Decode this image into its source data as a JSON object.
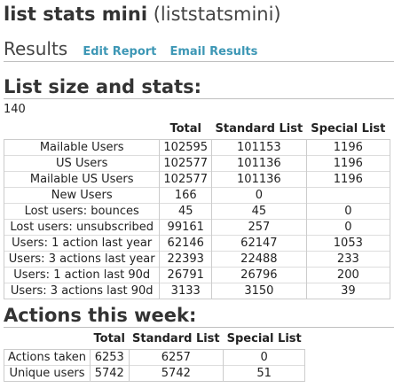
{
  "page": {
    "list_name": "list stats mini",
    "list_slug": "(liststatsmini)"
  },
  "results": {
    "heading": "Results",
    "edit_report_label": "Edit Report",
    "email_results_label": "Email Results"
  },
  "list_size": {
    "heading": "List size and stats:",
    "count": "140",
    "columns": [
      "",
      "Total",
      "Standard List",
      "Special List"
    ],
    "rows": [
      [
        "Mailable Users",
        "102595",
        "101153",
        "1196"
      ],
      [
        "US Users",
        "102577",
        "101136",
        "1196"
      ],
      [
        "Mailable US Users",
        "102577",
        "101136",
        "1196"
      ],
      [
        "New Users",
        "166",
        "0",
        ""
      ],
      [
        "Lost users: bounces",
        "45",
        "45",
        "0"
      ],
      [
        "Lost users: unsubscribed",
        "99161",
        "257",
        "0"
      ],
      [
        "Users: 1 action last year",
        "62146",
        "62147",
        "1053"
      ],
      [
        "Users: 3 actions last year",
        "22393",
        "22488",
        "233"
      ],
      [
        "Users: 1 action last 90d",
        "26791",
        "26796",
        "200"
      ],
      [
        "Users: 3 actions last 90d",
        "3133",
        "3150",
        "39"
      ]
    ]
  },
  "actions_week": {
    "heading": "Actions this week:",
    "columns": [
      "",
      "Total",
      "Standard List",
      "Special List"
    ],
    "rows": [
      [
        "Actions taken",
        "6253",
        "6257",
        "0"
      ],
      [
        "Unique users",
        "5742",
        "5742",
        "51"
      ]
    ]
  }
}
